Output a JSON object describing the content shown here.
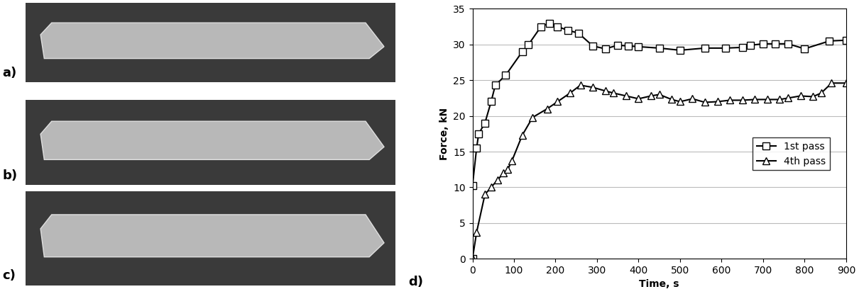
{
  "panel_labels": [
    "a)",
    "b)",
    "c)",
    "d)"
  ],
  "chart_data": {
    "type": "line",
    "x_label": "Time, s",
    "y_label": "Force, kN",
    "xlim": [
      0,
      900
    ],
    "xticks": [
      0,
      100,
      200,
      300,
      400,
      500,
      600,
      700,
      800,
      900
    ],
    "ylim": [
      0,
      35
    ],
    "yticks": [
      0,
      5,
      10,
      15,
      20,
      25,
      30,
      35
    ],
    "grid": "y",
    "legend": "center right",
    "series": [
      {
        "name": "1st pass",
        "color": "#000000",
        "marker": "square",
        "x": [
          0,
          0,
          10,
          15,
          30,
          45,
          55,
          80,
          120,
          135,
          165,
          185,
          205,
          230,
          255,
          290,
          320,
          350,
          375,
          400,
          450,
          500,
          560,
          610,
          650,
          670,
          700,
          730,
          760,
          800,
          860,
          900
        ],
        "values": [
          0,
          10.2,
          15.5,
          17.5,
          19,
          22,
          24.3,
          25.7,
          29,
          30,
          32.5,
          33,
          32.5,
          32,
          31.6,
          29.8,
          29.4,
          29.9,
          29.8,
          29.7,
          29.5,
          29.2,
          29.5,
          29.5,
          29.6,
          29.9,
          30.1,
          30.1,
          30.1,
          29.4,
          30.5,
          30.6
        ]
      },
      {
        "name": "4th pass",
        "color": "#000000",
        "marker": "triangle",
        "x": [
          0,
          10,
          30,
          45,
          60,
          75,
          85,
          95,
          120,
          145,
          180,
          205,
          235,
          260,
          290,
          320,
          340,
          370,
          400,
          430,
          450,
          480,
          500,
          530,
          560,
          590,
          620,
          650,
          680,
          710,
          740,
          760,
          790,
          820,
          840,
          865,
          900
        ],
        "values": [
          0,
          3.7,
          9,
          10,
          11,
          12,
          12.5,
          13.7,
          17.3,
          19.8,
          21,
          22,
          23.2,
          24.3,
          24,
          23.5,
          23.2,
          22.8,
          22.4,
          22.8,
          23,
          22.3,
          22,
          22.4,
          21.9,
          22,
          22.2,
          22.2,
          22.3,
          22.3,
          22.3,
          22.5,
          22.8,
          22.7,
          23.2,
          24.6,
          24.6
        ]
      }
    ]
  }
}
